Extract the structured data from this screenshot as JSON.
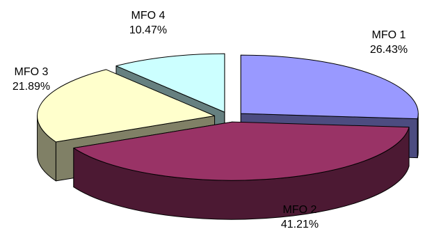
{
  "chart_data": {
    "type": "pie",
    "title": "",
    "style": "3d-exploded",
    "legend": "none",
    "slices": [
      {
        "label": "MFO 1",
        "value": 26.43,
        "value_text": "26.43%",
        "top_color": "#9999FF",
        "side_color": "#4C4C80"
      },
      {
        "label": "MFO 2",
        "value": 41.21,
        "value_text": "41.21%",
        "top_color": "#993366",
        "side_color": "#4C1933"
      },
      {
        "label": "MFO 3",
        "value": 21.89,
        "value_text": "21.89%",
        "top_color": "#FFFFCC",
        "side_color": "#808066"
      },
      {
        "label": "MFO 4",
        "value": 10.47,
        "value_text": "10.47%",
        "top_color": "#CCFFFF",
        "side_color": "#668080"
      }
    ]
  }
}
